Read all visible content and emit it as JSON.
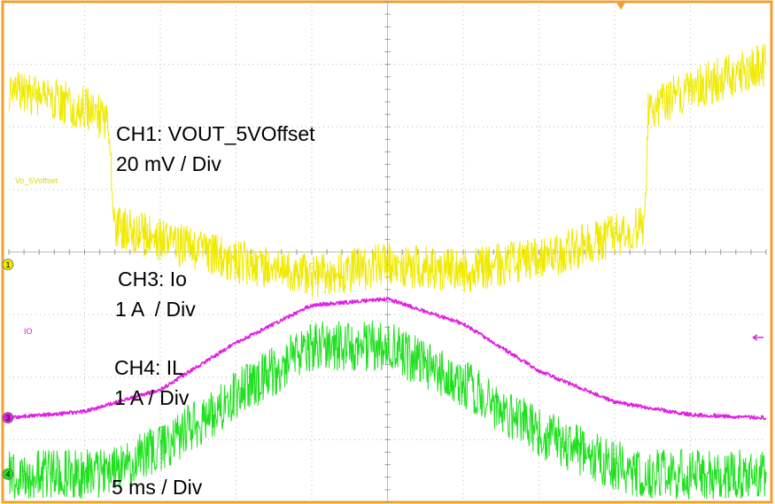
{
  "chart_data": {
    "type": "line",
    "title": "",
    "grid": true,
    "divisions": {
      "x": 10,
      "y": 8
    },
    "x": {
      "unit": "ms",
      "per_div": 5,
      "range": [
        0,
        50
      ]
    },
    "annotations": {
      "ch1_name": "CH1: VOUT_5VOffset",
      "ch1_scale": "20 mV / Div",
      "ch3_name": "CH3: Io",
      "ch3_scale": "1 A  / Div",
      "ch4_name": "CH4: IL",
      "ch4_scale": "1 A / Div",
      "time_scale": "5 ms / Div"
    },
    "series": [
      {
        "name": "Vo_5Voffset",
        "channel": "1",
        "color": "#f0ea00",
        "unit": "div",
        "x_ms": [
          0,
          5,
          6.5,
          7,
          10,
          15,
          20,
          25,
          30,
          35,
          42,
          42.2,
          45,
          50
        ],
        "y_div": [
          6.6,
          6.3,
          6.1,
          4.4,
          4.2,
          3.85,
          3.6,
          3.8,
          3.7,
          3.9,
          4.4,
          6.3,
          6.6,
          7.0
        ],
        "noise_div": 0.35
      },
      {
        "name": "IO",
        "channel": "3",
        "color": "#e020e0",
        "unit": "A",
        "x_ms": [
          0,
          5,
          10,
          15,
          20,
          25,
          30,
          35,
          40,
          45,
          50
        ],
        "y_A": [
          0,
          0.1,
          0.45,
          1.2,
          1.8,
          1.9,
          1.5,
          0.75,
          0.25,
          0.05,
          0
        ],
        "noise_div": 0.03
      },
      {
        "name": "IL",
        "channel": "4",
        "color": "#20e020",
        "unit": "A",
        "x_ms": [
          0,
          5,
          7,
          10,
          15,
          20,
          25,
          30,
          35,
          40,
          42,
          45,
          50
        ],
        "y_A": [
          0,
          0,
          0.05,
          0.4,
          1.25,
          2.05,
          2.05,
          1.45,
          0.65,
          0.15,
          0,
          0,
          0
        ],
        "noise_div": 0.4
      }
    ]
  }
}
